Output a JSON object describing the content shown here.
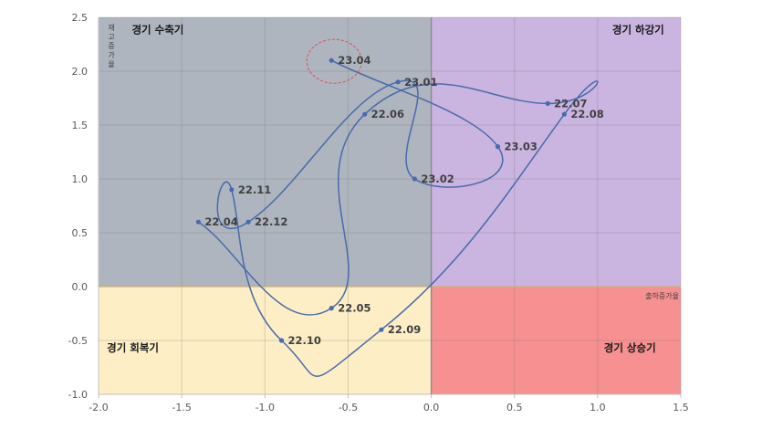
{
  "chart_data": {
    "type": "scatter",
    "xlim": [
      -2.0,
      1.5
    ],
    "ylim": [
      -1.0,
      2.5
    ],
    "xticks": [
      "-2.0",
      "-1.5",
      "-1.0",
      "-0.5",
      "0.0",
      "0.5",
      "1.0",
      "1.5"
    ],
    "yticks": [
      "-1.0",
      "-0.5",
      "0.0",
      "0.5",
      "1.0",
      "1.5",
      "2.0",
      "2.5"
    ],
    "xlabel": "출하증가율",
    "ylabel": "재고증가율",
    "grid": true,
    "series": [
      {
        "points": [
          {
            "label": "22.04",
            "x": -1.4,
            "y": 0.6
          },
          {
            "label": "22.05",
            "x": -0.6,
            "y": -0.2
          },
          {
            "label": "22.06",
            "x": -0.4,
            "y": 1.6
          },
          {
            "label": "22.07",
            "x": 0.7,
            "y": 1.7
          },
          {
            "label": "22.08",
            "x": 0.8,
            "y": 1.6
          },
          {
            "label": "22.09",
            "x": -0.3,
            "y": -0.4
          },
          {
            "label": "22.10",
            "x": -0.9,
            "y": -0.5
          },
          {
            "label": "22.11",
            "x": -1.2,
            "y": 0.9
          },
          {
            "label": "22.12",
            "x": -1.1,
            "y": 0.6
          },
          {
            "label": "23.01",
            "x": -0.2,
            "y": 1.9
          },
          {
            "label": "23.02",
            "x": -0.1,
            "y": 1.0
          },
          {
            "label": "23.03",
            "x": 0.4,
            "y": 1.3
          },
          {
            "label": "23.04",
            "x": -0.6,
            "y": 2.1
          }
        ]
      }
    ],
    "highlight": "23.04",
    "quadrants": [
      {
        "label": "경기 수축기",
        "color": "#aeb5be"
      },
      {
        "label": "경기 하강기",
        "color": "#cab4e0"
      },
      {
        "label": "경기 회복기",
        "color": "#fdeec5"
      },
      {
        "label": "경기 상승기",
        "color": "#f79090"
      }
    ],
    "colors": {
      "line": "#4a6aab",
      "marker": "#4a6aab",
      "highlight_circle": "#e05050",
      "xlabel": "#c0392b"
    }
  }
}
